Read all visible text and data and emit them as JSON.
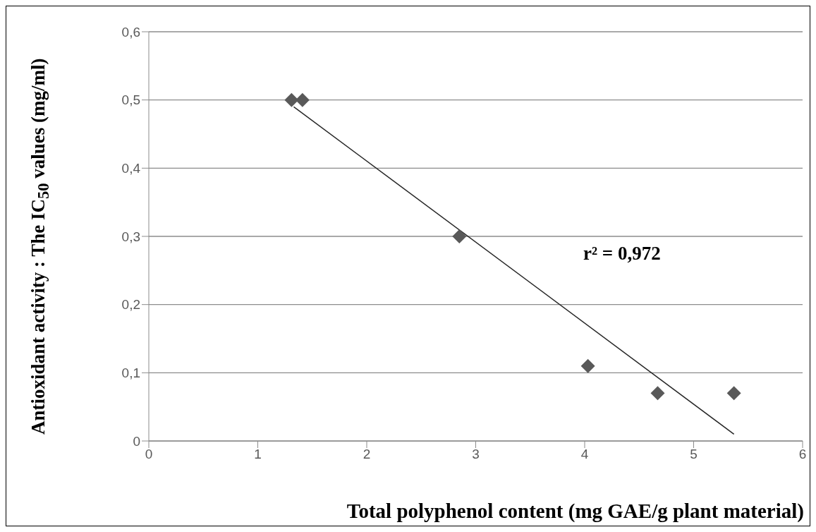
{
  "chart_data": {
    "type": "scatter",
    "xlabel": "Total polyphenol content (mg GAE/g plant material)",
    "ylabel": "Antioxidant activity : The IC$_{50}$ values (mg/ml)",
    "series": [
      {
        "color": "#595959",
        "marker": "diamond",
        "x": [
          1.31,
          1.41,
          2.85,
          4.03,
          4.67,
          5.37
        ],
        "values": [
          0.5,
          0.5,
          0.3,
          0.11,
          0.07,
          0.07
        ]
      },
      {
        "type": "line",
        "color": "#262626",
        "marker": "none",
        "x": [
          1.33,
          5.37
        ],
        "values": [
          0.49,
          0.01
        ]
      }
    ],
    "xlim": [
      0,
      6
    ],
    "xticks": [
      0,
      1,
      2,
      3,
      4,
      5,
      6
    ],
    "ylim": [
      0,
      0.6
    ],
    "yticks": [
      {
        "value": 0,
        "label": "0"
      },
      {
        "value": 0.1,
        "label": "0,1"
      },
      {
        "value": 0.2,
        "label": "0,2"
      },
      {
        "value": 0.3,
        "label": "0,3"
      },
      {
        "value": 0.4,
        "label": "0,4"
      },
      {
        "value": 0.5,
        "label": "0,5"
      },
      {
        "value": 0.6,
        "label": "0,6"
      }
    ],
    "grid": "y",
    "legend": false,
    "annotations": [
      "r² = 0,972"
    ]
  }
}
